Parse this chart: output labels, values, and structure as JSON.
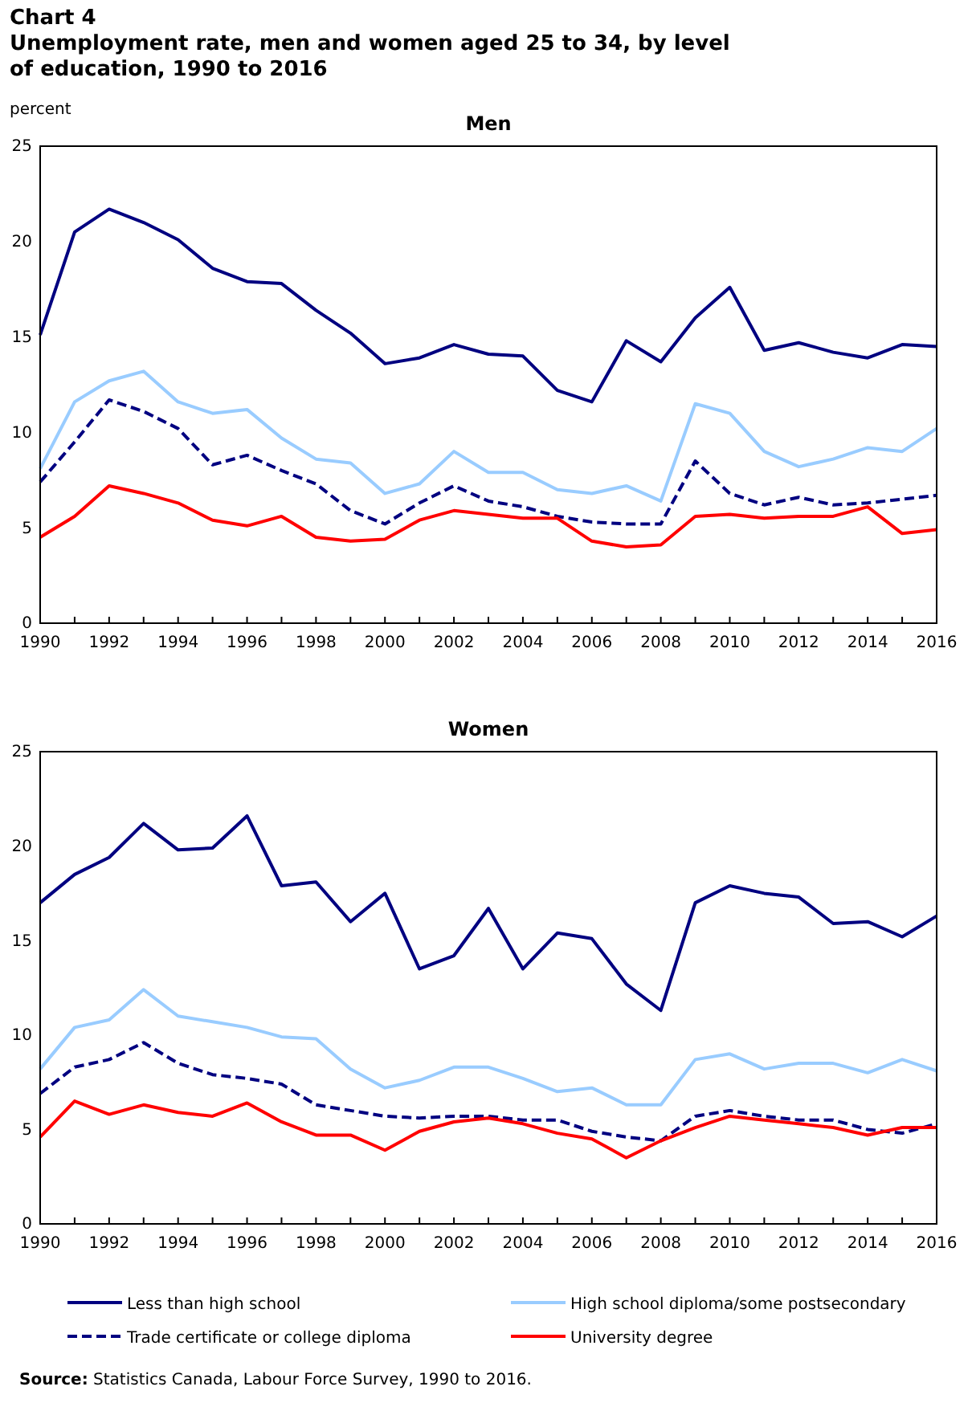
{
  "chart_data": [
    {
      "type": "line",
      "title": "Men",
      "ylabel": "percent",
      "annotations": [
        "Chart 4",
        "Unemployment rate, men and women aged 25 to 34, by level of education, 1990 to 2016"
      ],
      "x": [
        1990,
        1991,
        1992,
        1993,
        1994,
        1995,
        1996,
        1997,
        1998,
        1999,
        2000,
        2001,
        2002,
        2003,
        2004,
        2005,
        2006,
        2007,
        2008,
        2009,
        2010,
        2011,
        2012,
        2013,
        2014,
        2015,
        2016
      ],
      "xlim": [
        1990,
        2016
      ],
      "xticks": [
        1990,
        {
          "value": 1991,
          "label": null
        },
        1992,
        {
          "value": 1993,
          "label": null
        },
        1994,
        {
          "value": 1995,
          "label": null
        },
        1996,
        {
          "value": 1997,
          "label": null
        },
        1998,
        {
          "value": 1999,
          "label": null
        },
        2000,
        {
          "value": 2001,
          "label": null
        },
        2002,
        {
          "value": 2003,
          "label": null
        },
        2004,
        {
          "value": 2005,
          "label": null
        },
        2006,
        {
          "value": 2007,
          "label": null
        },
        2008,
        {
          "value": 2009,
          "label": null
        },
        2010,
        {
          "value": 2011,
          "label": null
        },
        2012,
        {
          "value": 2013,
          "label": null
        },
        2014,
        {
          "value": 2015,
          "label": null
        },
        2016
      ],
      "ylim": [
        0,
        25
      ],
      "yticks": [
        0,
        5,
        10,
        15,
        20,
        25
      ],
      "series": [
        {
          "color": "#000080",
          "values": [
            15.1,
            20.5,
            21.7,
            21.0,
            20.1,
            18.6,
            17.9,
            17.8,
            16.4,
            15.2,
            13.6,
            13.9,
            14.6,
            14.1,
            14.0,
            12.2,
            11.6,
            14.8,
            13.7,
            16.0,
            17.6,
            14.3,
            14.7,
            14.2,
            13.9,
            14.6,
            14.5
          ]
        },
        {
          "color": "#99ccff",
          "values": [
            8.1,
            11.6,
            12.7,
            13.2,
            11.6,
            11.0,
            11.2,
            9.7,
            8.6,
            8.4,
            6.8,
            7.3,
            9.0,
            7.9,
            7.9,
            7.0,
            6.8,
            7.2,
            6.4,
            11.5,
            11.0,
            9.0,
            8.2,
            8.6,
            9.2,
            9.0,
            10.2
          ]
        },
        {
          "color": "#000080",
          "line_style": "dashed",
          "values": [
            7.4,
            9.5,
            11.7,
            11.1,
            10.2,
            8.3,
            8.8,
            8.0,
            7.3,
            5.9,
            5.2,
            6.3,
            7.2,
            6.4,
            6.1,
            5.6,
            5.3,
            5.2,
            5.2,
            8.5,
            6.8,
            6.2,
            6.6,
            6.2,
            6.3,
            6.5,
            6.7
          ]
        },
        {
          "color": "#ff0000",
          "values": [
            4.5,
            5.6,
            7.2,
            6.8,
            6.3,
            5.4,
            5.1,
            5.6,
            4.5,
            4.3,
            4.4,
            5.4,
            5.9,
            5.7,
            5.5,
            5.5,
            4.3,
            4.0,
            4.1,
            5.6,
            5.7,
            5.5,
            5.6,
            5.6,
            6.1,
            4.7,
            4.9
          ]
        }
      ]
    },
    {
      "type": "line",
      "title": "Women",
      "legend": "bottom",
      "annotations": [
        "Source: Statistics Canada, Labour Force Survey, 1990 to 2016."
      ],
      "x": [
        1990,
        1991,
        1992,
        1993,
        1994,
        1995,
        1996,
        1997,
        1998,
        1999,
        2000,
        2001,
        2002,
        2003,
        2004,
        2005,
        2006,
        2007,
        2008,
        2009,
        2010,
        2011,
        2012,
        2013,
        2014,
        2015,
        2016
      ],
      "xlim": [
        1990,
        2016
      ],
      "xticks": [
        1990,
        {
          "value": 1991,
          "label": null
        },
        1992,
        {
          "value": 1993,
          "label": null
        },
        1994,
        {
          "value": 1995,
          "label": null
        },
        1996,
        {
          "value": 1997,
          "label": null
        },
        1998,
        {
          "value": 1999,
          "label": null
        },
        2000,
        {
          "value": 2001,
          "label": null
        },
        2002,
        {
          "value": 2003,
          "label": null
        },
        2004,
        {
          "value": 2005,
          "label": null
        },
        2006,
        {
          "value": 2007,
          "label": null
        },
        2008,
        {
          "value": 2009,
          "label": null
        },
        2010,
        {
          "value": 2011,
          "label": null
        },
        2012,
        {
          "value": 2013,
          "label": null
        },
        2014,
        {
          "value": 2015,
          "label": null
        },
        2016
      ],
      "ylim": [
        0,
        25
      ],
      "yticks": [
        0,
        5,
        10,
        15,
        20,
        25
      ],
      "series": [
        {
          "name": "Less than high school",
          "color": "#000080",
          "values": [
            17.0,
            18.5,
            19.4,
            21.2,
            19.8,
            19.9,
            21.6,
            17.9,
            18.1,
            16.0,
            17.5,
            13.5,
            14.2,
            16.7,
            13.5,
            15.4,
            15.1,
            12.7,
            11.3,
            17.0,
            17.9,
            17.5,
            17.3,
            15.9,
            16.0,
            15.2,
            16.3
          ]
        },
        {
          "name": "High school diploma/some postsecondary",
          "color": "#99ccff",
          "values": [
            8.2,
            10.4,
            10.8,
            12.4,
            11.0,
            10.7,
            10.4,
            9.9,
            9.8,
            8.2,
            7.2,
            7.6,
            8.3,
            8.3,
            7.7,
            7.0,
            7.2,
            6.3,
            6.3,
            8.7,
            9.0,
            8.2,
            8.5,
            8.5,
            8.0,
            8.7,
            8.1
          ]
        },
        {
          "name": "Trade certificate or college diploma",
          "color": "#000080",
          "line_style": "dashed",
          "values": [
            6.9,
            8.3,
            8.7,
            9.6,
            8.5,
            7.9,
            7.7,
            7.4,
            6.3,
            6.0,
            5.7,
            5.6,
            5.7,
            5.7,
            5.5,
            5.5,
            4.9,
            4.6,
            4.4,
            5.7,
            6.0,
            5.7,
            5.5,
            5.5,
            5.0,
            4.8,
            5.3
          ]
        },
        {
          "name": "University degree",
          "color": "#ff0000",
          "values": [
            4.6,
            6.5,
            5.8,
            6.3,
            5.9,
            5.7,
            6.4,
            5.4,
            4.7,
            4.7,
            3.9,
            4.9,
            5.4,
            5.6,
            5.3,
            4.8,
            4.5,
            3.5,
            4.4,
            5.1,
            5.7,
            5.5,
            5.3,
            5.1,
            4.7,
            5.1,
            5.1
          ]
        }
      ]
    }
  ]
}
